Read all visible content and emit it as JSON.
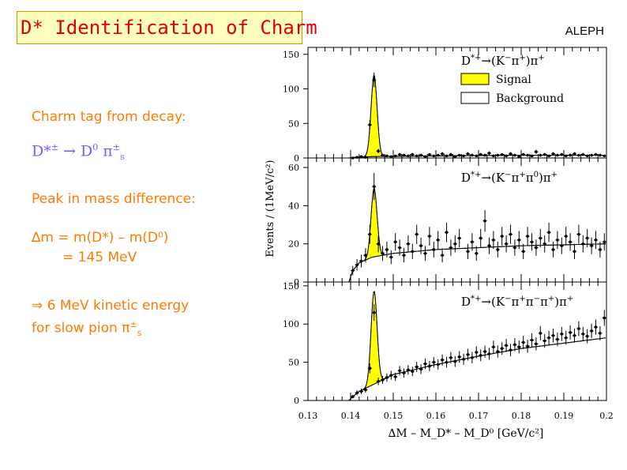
{
  "slide": {
    "title": "D* Identification of Charm",
    "experiment": "ALEPH",
    "charm_tag": "Charm tag from decay:",
    "decay": {
      "lhs": "D*",
      "lhs_sup": "±",
      "arrow": "→",
      "d0": "D",
      "d0_sup": "0",
      "pi": "π",
      "pi_sup": "±",
      "pi_sub": "s"
    },
    "peak_label": "Peak in mass difference:",
    "delta_line1": "∆m = m(D*) – m(D⁰)",
    "delta_line2": "= 145 MeV",
    "kinetic": {
      "arrow": "⇒",
      "text": " 6 MeV kinetic energy"
    },
    "slow_pion": {
      "text": "for slow pion ",
      "pi": "π",
      "pi_sup": "±",
      "pi_sub": "s"
    }
  },
  "colors": {
    "title_text": "#e00000",
    "title_bg": "#ffffc0",
    "orange_text": "#ff7a00",
    "decay_text": "#7060ff",
    "signal_fill": "#ffff00"
  },
  "chart_data": {
    "type": "scatter",
    "shared_x": {
      "label": "∆M – M_D* – M_D⁰ [GeV/c²]",
      "range": [
        0.13,
        0.2
      ],
      "ticks": [
        "0.13",
        "0.14",
        "0.15",
        "0.16",
        "0.17",
        "0.18",
        "0.19",
        "0.2"
      ]
    },
    "shared_y_label": "Events / (1MeV/c²)",
    "legend": {
      "signal": "Signal",
      "background": "Background",
      "placement": "top-right"
    },
    "panels": [
      {
        "name": "kpi",
        "channel": "D*+→(K−π+)π+",
        "channel_parts": [
          "D",
          "*+",
          "→(K",
          "−",
          "π",
          "+",
          ")π",
          "+"
        ],
        "ylim": [
          0,
          160
        ],
        "yticks": [
          "0",
          "50",
          "100",
          "150"
        ],
        "signal_peak": 118,
        "signal_width": 0.0007,
        "background": [
          [
            0.1396,
            0
          ],
          [
            0.141,
            1
          ],
          [
            0.145,
            2
          ],
          [
            0.16,
            3
          ],
          [
            0.18,
            4
          ],
          [
            0.2,
            4
          ]
        ],
        "points": [
          [
            0.1405,
            0
          ],
          [
            0.1415,
            1
          ],
          [
            0.1425,
            2
          ],
          [
            0.1435,
            1
          ],
          [
            0.1445,
            48
          ],
          [
            0.1455,
            113
          ],
          [
            0.1465,
            10
          ],
          [
            0.1475,
            4
          ],
          [
            0.1485,
            3
          ],
          [
            0.1495,
            2
          ],
          [
            0.1505,
            3
          ],
          [
            0.1515,
            5
          ],
          [
            0.1525,
            4
          ],
          [
            0.1535,
            3
          ],
          [
            0.1545,
            5
          ],
          [
            0.1555,
            3
          ],
          [
            0.1565,
            4
          ],
          [
            0.1575,
            2
          ],
          [
            0.1585,
            5
          ],
          [
            0.1595,
            3
          ],
          [
            0.1605,
            4
          ],
          [
            0.1615,
            6
          ],
          [
            0.1625,
            3
          ],
          [
            0.1635,
            5
          ],
          [
            0.1645,
            2
          ],
          [
            0.1655,
            4
          ],
          [
            0.1665,
            3
          ],
          [
            0.1675,
            6
          ],
          [
            0.1685,
            4
          ],
          [
            0.1695,
            3
          ],
          [
            0.1705,
            5
          ],
          [
            0.1715,
            4
          ],
          [
            0.1725,
            7
          ],
          [
            0.1735,
            3
          ],
          [
            0.1745,
            4
          ],
          [
            0.1755,
            5
          ],
          [
            0.1765,
            3
          ],
          [
            0.1775,
            6
          ],
          [
            0.1785,
            4
          ],
          [
            0.1795,
            2
          ],
          [
            0.1805,
            5
          ],
          [
            0.1815,
            4
          ],
          [
            0.1825,
            3
          ],
          [
            0.1835,
            9
          ],
          [
            0.1845,
            4
          ],
          [
            0.1855,
            5
          ],
          [
            0.1865,
            3
          ],
          [
            0.1875,
            6
          ],
          [
            0.1885,
            4
          ],
          [
            0.1895,
            5
          ],
          [
            0.1905,
            3
          ],
          [
            0.1915,
            4
          ],
          [
            0.1925,
            6
          ],
          [
            0.1935,
            4
          ],
          [
            0.1945,
            5
          ],
          [
            0.1955,
            3
          ],
          [
            0.1965,
            4
          ],
          [
            0.1975,
            5
          ],
          [
            0.1985,
            4
          ],
          [
            0.1995,
            3
          ]
        ]
      },
      {
        "name": "kpipi0",
        "channel": "D*+→(K−π+π0)π+",
        "channel_parts": [
          "D",
          "*+",
          "→(K",
          "−",
          "π",
          "+",
          "π",
          "0",
          ")π",
          "+"
        ],
        "ylim": [
          0,
          65
        ],
        "yticks": [
          "0",
          "20",
          "40",
          "60"
        ],
        "signal_peak": 36,
        "signal_width": 0.0007,
        "background": [
          [
            0.1396,
            0
          ],
          [
            0.1405,
            6
          ],
          [
            0.142,
            10
          ],
          [
            0.145,
            13
          ],
          [
            0.15,
            15
          ],
          [
            0.16,
            17
          ],
          [
            0.18,
            19
          ],
          [
            0.2,
            20
          ]
        ],
        "points": [
          [
            0.1405,
            6
          ],
          [
            0.1415,
            9
          ],
          [
            0.1425,
            11
          ],
          [
            0.1435,
            14
          ],
          [
            0.1445,
            25
          ],
          [
            0.1455,
            50
          ],
          [
            0.1465,
            20
          ],
          [
            0.1475,
            15
          ],
          [
            0.1485,
            17
          ],
          [
            0.1495,
            13
          ],
          [
            0.1505,
            21
          ],
          [
            0.1515,
            18
          ],
          [
            0.1525,
            14
          ],
          [
            0.1535,
            20
          ],
          [
            0.1545,
            16
          ],
          [
            0.1555,
            25
          ],
          [
            0.1565,
            19
          ],
          [
            0.1575,
            15
          ],
          [
            0.1585,
            24
          ],
          [
            0.1595,
            17
          ],
          [
            0.1605,
            22
          ],
          [
            0.1615,
            14
          ],
          [
            0.1625,
            26
          ],
          [
            0.1635,
            18
          ],
          [
            0.1645,
            20
          ],
          [
            0.1655,
            23
          ],
          [
            0.1675,
            16
          ],
          [
            0.1685,
            21
          ],
          [
            0.1695,
            15
          ],
          [
            0.1705,
            23
          ],
          [
            0.1715,
            32
          ],
          [
            0.1725,
            19
          ],
          [
            0.1735,
            22
          ],
          [
            0.1745,
            17
          ],
          [
            0.1755,
            24
          ],
          [
            0.1765,
            20
          ],
          [
            0.1775,
            25
          ],
          [
            0.1785,
            18
          ],
          [
            0.1795,
            22
          ],
          [
            0.1805,
            16
          ],
          [
            0.1815,
            24
          ],
          [
            0.1825,
            21
          ],
          [
            0.1835,
            18
          ],
          [
            0.1845,
            23
          ],
          [
            0.1855,
            20
          ],
          [
            0.1865,
            26
          ],
          [
            0.1875,
            17
          ],
          [
            0.1885,
            22
          ],
          [
            0.1895,
            19
          ],
          [
            0.1905,
            24
          ],
          [
            0.1915,
            21
          ],
          [
            0.1925,
            16
          ],
          [
            0.1935,
            25
          ],
          [
            0.1945,
            20
          ],
          [
            0.1955,
            23
          ],
          [
            0.1965,
            19
          ],
          [
            0.1975,
            22
          ],
          [
            0.1985,
            17
          ],
          [
            0.1995,
            21
          ]
        ]
      },
      {
        "name": "kpipipi",
        "channel": "D*+→(K−π+π−π+)π+",
        "channel_parts": [
          "D",
          "*+",
          "→(K",
          "−",
          "π",
          "+",
          "π",
          "−",
          "π",
          "+",
          ")π",
          "+"
        ],
        "ylim": [
          0,
          155
        ],
        "yticks": [
          "0",
          "50",
          "100",
          "150"
        ],
        "signal_peak": 122,
        "signal_width": 0.0007,
        "background": [
          [
            0.1396,
            0
          ],
          [
            0.1405,
            5
          ],
          [
            0.142,
            12
          ],
          [
            0.145,
            20
          ],
          [
            0.15,
            34
          ],
          [
            0.16,
            47
          ],
          [
            0.17,
            58
          ],
          [
            0.18,
            68
          ],
          [
            0.19,
            75
          ],
          [
            0.2,
            82
          ]
        ],
        "points": [
          [
            0.1405,
            5
          ],
          [
            0.1415,
            10
          ],
          [
            0.1425,
            12
          ],
          [
            0.1435,
            14
          ],
          [
            0.1445,
            42
          ],
          [
            0.1455,
            115
          ],
          [
            0.1465,
            25
          ],
          [
            0.1475,
            27
          ],
          [
            0.1485,
            30
          ],
          [
            0.1495,
            33
          ],
          [
            0.1505,
            31
          ],
          [
            0.1515,
            39
          ],
          [
            0.1525,
            36
          ],
          [
            0.1535,
            40
          ],
          [
            0.1545,
            38
          ],
          [
            0.1555,
            44
          ],
          [
            0.1565,
            41
          ],
          [
            0.1575,
            48
          ],
          [
            0.1585,
            45
          ],
          [
            0.1595,
            50
          ],
          [
            0.1605,
            47
          ],
          [
            0.1615,
            53
          ],
          [
            0.1625,
            50
          ],
          [
            0.1635,
            56
          ],
          [
            0.1645,
            51
          ],
          [
            0.1655,
            57
          ],
          [
            0.1665,
            54
          ],
          [
            0.1675,
            60
          ],
          [
            0.1685,
            56
          ],
          [
            0.1695,
            63
          ],
          [
            0.1705,
            59
          ],
          [
            0.1715,
            64
          ],
          [
            0.1725,
            61
          ],
          [
            0.1735,
            70
          ],
          [
            0.1745,
            64
          ],
          [
            0.1755,
            68
          ],
          [
            0.1765,
            72
          ],
          [
            0.1775,
            66
          ],
          [
            0.1785,
            73
          ],
          [
            0.1795,
            70
          ],
          [
            0.1805,
            76
          ],
          [
            0.1815,
            71
          ],
          [
            0.1825,
            79
          ],
          [
            0.1835,
            74
          ],
          [
            0.1845,
            88
          ],
          [
            0.1855,
            78
          ],
          [
            0.1865,
            82
          ],
          [
            0.1875,
            85
          ],
          [
            0.1885,
            80
          ],
          [
            0.1895,
            87
          ],
          [
            0.1905,
            82
          ],
          [
            0.1915,
            89
          ],
          [
            0.1925,
            85
          ],
          [
            0.1935,
            94
          ],
          [
            0.1945,
            87
          ],
          [
            0.1955,
            84
          ],
          [
            0.1965,
            91
          ],
          [
            0.1975,
            96
          ],
          [
            0.1985,
            88
          ],
          [
            0.1995,
            108
          ]
        ]
      }
    ]
  }
}
